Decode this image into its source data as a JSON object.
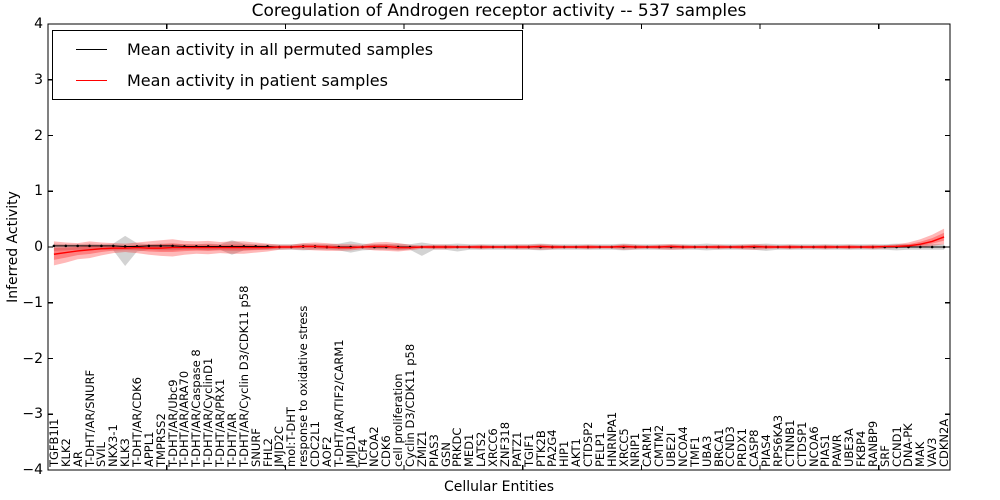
{
  "title": "Coregulation of Androgen receptor activity -- 537 samples",
  "legend": {
    "items": [
      {
        "label": "Mean activity in all permuted samples",
        "color": "#000000"
      },
      {
        "label": "Mean activity in patient samples",
        "color": "#ff0000"
      }
    ],
    "position": "upper left"
  },
  "axes": {
    "xlabel": "Cellular Entities",
    "ylabel": "Inferred Activity",
    "y_tick_values": [
      4,
      3,
      2,
      1,
      0,
      -1,
      -2,
      -3,
      -4
    ],
    "y_tick_labels": [
      "4",
      "3",
      "2",
      "1",
      "0",
      "−1",
      "−2",
      "−3",
      "−4"
    ],
    "x_tick_units": [
      10,
      20,
      30,
      40,
      50,
      60,
      70
    ],
    "ylim": [
      -4,
      4
    ],
    "grid": false
  },
  "colors": {
    "permuted_line": "#000000",
    "patient_line": "#ff0000",
    "permuted_band": "#808080",
    "patient_band": "#ff0000",
    "permuted_band_alpha": 0.35,
    "patient_band_alpha": 0.28,
    "spine": "#000000",
    "background": "#ffffff"
  },
  "chart_data": {
    "type": "line",
    "title": "Coregulation of Androgen receptor activity -- 537 samples",
    "xlabel": "Cellular Entities",
    "ylabel": "Inferred Activity",
    "ylim": [
      -4,
      4
    ],
    "n_points": 76,
    "legend_position": "upper left",
    "grid": false,
    "categories": [
      "TGFB1I1",
      "KLK2",
      "AR",
      "T-DHT/AR/SNURF",
      "SVIL",
      "NKX3-1",
      "KLK3",
      "T-DHT/AR/CDK6",
      "APPL1",
      "TMPRSS2",
      "T-DHT/AR/Ubc9",
      "T-DHT/AR/ARA70",
      "T-DHT/AR/Caspase 8",
      "T-DHT/AR/CyclinD1",
      "T-DHT/AR/PRX1",
      "T-DHT/AR",
      "T-DHT/AR/Cyclin D3/CDK11 p58",
      "SNURF",
      "FHL2",
      "JMJD2C",
      "mol:T-DHT",
      "response to oxidative stress",
      "CDC2L1",
      "AOF2",
      "T-DHT/AR/TIF2/CARM1",
      "JMJD1A",
      "TCF4",
      "NCOA2",
      "CDK6",
      "cell proliferation",
      "Cyclin D3/CDK11 p58",
      "ZMIZ1",
      "PIAS3",
      "GSN",
      "PRKDC",
      "MED1",
      "LATS2",
      "XRCC6",
      "ZNF318",
      "PATZ1",
      "TGIF1",
      "PTK2B",
      "PA2G4",
      "HIP1",
      "AKT1",
      "CTDSP2",
      "PELP1",
      "HNRNPA1",
      "XRCC5",
      "NRIP1",
      "CARM1",
      "CMTM2",
      "UBE2I",
      "NCOA4",
      "TMF1",
      "UBA3",
      "BRCA1",
      "CCND3",
      "PRDX1",
      "CASP8",
      "PIAS4",
      "RPS6KA3",
      "CTNNB1",
      "CTDSP1",
      "NCOA6",
      "PIAS1",
      "PAWR",
      "UBE3A",
      "FKBP4",
      "RANBP9",
      "SRF",
      "CCND1",
      "DNA-PK",
      "MAK",
      "VAV3",
      "CDKN2A"
    ],
    "series": [
      {
        "name": "Mean activity in all permuted samples",
        "color": "#000000",
        "band_color": "#808080",
        "markers": true,
        "values": [
          0.02,
          0.02,
          0.02,
          0.02,
          0.02,
          0.02,
          0.01,
          0.01,
          0.02,
          0.02,
          0.02,
          0.01,
          0.01,
          0.01,
          0.01,
          0.01,
          0.01,
          0.01,
          0.01,
          0.0,
          0.0,
          0.01,
          0.01,
          0.0,
          0.0,
          0.0,
          0.0,
          0.0,
          0.0,
          0.0,
          0.0,
          0.0,
          0.0,
          0.0,
          0.0,
          0.0,
          0.0,
          0.0,
          0.0,
          0.0,
          0.0,
          0.0,
          0.0,
          0.0,
          0.0,
          0.0,
          0.0,
          0.0,
          0.0,
          0.0,
          0.0,
          0.0,
          0.0,
          0.0,
          0.0,
          0.0,
          0.0,
          0.0,
          0.0,
          0.0,
          0.0,
          0.0,
          0.0,
          0.0,
          0.0,
          0.0,
          0.0,
          0.0,
          0.0,
          0.0,
          0.0,
          0.0,
          0.0,
          0.0,
          0.0,
          0.0
        ],
        "band_upper": [
          0.06,
          0.05,
          0.05,
          0.06,
          0.05,
          0.06,
          0.2,
          0.07,
          0.05,
          0.06,
          0.06,
          0.05,
          0.05,
          0.06,
          0.05,
          0.12,
          0.06,
          0.05,
          0.05,
          0.05,
          0.05,
          0.06,
          0.05,
          0.05,
          0.06,
          0.1,
          0.06,
          0.05,
          0.05,
          0.06,
          0.05,
          0.08,
          0.05,
          0.05,
          0.06,
          0.05,
          0.05,
          0.05,
          0.05,
          0.05,
          0.05,
          0.06,
          0.05,
          0.05,
          0.05,
          0.05,
          0.05,
          0.05,
          0.06,
          0.05,
          0.05,
          0.05,
          0.05,
          0.05,
          0.05,
          0.06,
          0.05,
          0.05,
          0.05,
          0.05,
          0.06,
          0.05,
          0.05,
          0.05,
          0.05,
          0.05,
          0.05,
          0.05,
          0.05,
          0.05,
          0.05,
          0.06,
          0.05,
          0.05,
          0.05,
          0.05
        ],
        "band_lower": [
          -0.07,
          -0.06,
          -0.05,
          -0.06,
          -0.05,
          -0.06,
          -0.34,
          -0.08,
          -0.05,
          -0.06,
          -0.06,
          -0.05,
          -0.05,
          -0.06,
          -0.05,
          -0.14,
          -0.06,
          -0.05,
          -0.05,
          -0.05,
          -0.05,
          -0.06,
          -0.05,
          -0.05,
          -0.06,
          -0.1,
          -0.06,
          -0.05,
          -0.05,
          -0.06,
          -0.05,
          -0.16,
          -0.05,
          -0.05,
          -0.08,
          -0.05,
          -0.05,
          -0.05,
          -0.05,
          -0.05,
          -0.05,
          -0.06,
          -0.05,
          -0.05,
          -0.05,
          -0.05,
          -0.05,
          -0.05,
          -0.06,
          -0.05,
          -0.05,
          -0.05,
          -0.05,
          -0.05,
          -0.05,
          -0.06,
          -0.05,
          -0.05,
          -0.05,
          -0.05,
          -0.07,
          -0.05,
          -0.05,
          -0.05,
          -0.05,
          -0.05,
          -0.05,
          -0.05,
          -0.05,
          -0.05,
          -0.05,
          -0.06,
          -0.05,
          -0.05,
          -0.05,
          -0.05
        ]
      },
      {
        "name": "Mean activity in patient samples",
        "color": "#ff0000",
        "band_color": "#ff0000",
        "markers": false,
        "values": [
          -0.13,
          -0.1,
          -0.07,
          -0.05,
          -0.03,
          -0.02,
          -0.02,
          -0.01,
          -0.02,
          -0.02,
          -0.01,
          -0.01,
          -0.01,
          -0.01,
          -0.01,
          -0.01,
          -0.01,
          -0.01,
          -0.01,
          0.0,
          0.0,
          0.01,
          0.01,
          0.0,
          -0.01,
          -0.01,
          0.0,
          0.01,
          0.01,
          -0.01,
          -0.01,
          0.0,
          0.0,
          0.0,
          0.0,
          0.0,
          0.0,
          0.0,
          0.0,
          0.0,
          0.0,
          0.01,
          0.0,
          0.0,
          0.0,
          0.0,
          0.0,
          0.0,
          0.01,
          0.0,
          0.0,
          0.0,
          0.01,
          0.0,
          0.0,
          0.0,
          0.0,
          0.0,
          0.0,
          0.01,
          0.0,
          0.0,
          0.0,
          0.0,
          0.0,
          0.0,
          0.0,
          0.0,
          0.0,
          0.0,
          0.01,
          0.01,
          0.02,
          0.05,
          0.1,
          0.18
        ],
        "band_upper": [
          0.1,
          0.08,
          0.07,
          0.1,
          0.08,
          0.07,
          0.06,
          0.08,
          0.1,
          0.12,
          0.14,
          0.11,
          0.1,
          0.11,
          0.09,
          0.1,
          0.1,
          0.08,
          0.06,
          0.04,
          0.04,
          0.07,
          0.08,
          0.07,
          0.05,
          0.05,
          0.04,
          0.08,
          0.09,
          0.07,
          0.04,
          0.03,
          0.04,
          0.04,
          0.03,
          0.03,
          0.04,
          0.03,
          0.03,
          0.04,
          0.04,
          0.05,
          0.04,
          0.03,
          0.03,
          0.04,
          0.03,
          0.03,
          0.05,
          0.04,
          0.03,
          0.04,
          0.05,
          0.04,
          0.03,
          0.03,
          0.04,
          0.03,
          0.04,
          0.05,
          0.04,
          0.03,
          0.04,
          0.03,
          0.03,
          0.04,
          0.03,
          0.04,
          0.03,
          0.04,
          0.03,
          0.05,
          0.08,
          0.14,
          0.22,
          0.33
        ],
        "band_lower": [
          -0.33,
          -0.28,
          -0.22,
          -0.2,
          -0.15,
          -0.11,
          -0.09,
          -0.11,
          -0.14,
          -0.16,
          -0.17,
          -0.14,
          -0.12,
          -0.13,
          -0.11,
          -0.12,
          -0.12,
          -0.1,
          -0.08,
          -0.05,
          -0.04,
          -0.05,
          -0.06,
          -0.07,
          -0.07,
          -0.06,
          -0.04,
          -0.06,
          -0.07,
          -0.08,
          -0.06,
          -0.03,
          -0.04,
          -0.04,
          -0.03,
          -0.03,
          -0.04,
          -0.03,
          -0.03,
          -0.04,
          -0.04,
          -0.05,
          -0.04,
          -0.03,
          -0.03,
          -0.04,
          -0.03,
          -0.03,
          -0.05,
          -0.04,
          -0.03,
          -0.04,
          -0.05,
          -0.04,
          -0.03,
          -0.03,
          -0.04,
          -0.03,
          -0.04,
          -0.05,
          -0.04,
          -0.03,
          -0.04,
          -0.03,
          -0.03,
          -0.04,
          -0.03,
          -0.04,
          -0.03,
          -0.04,
          -0.03,
          -0.02,
          -0.01,
          0.0,
          0.02,
          0.05
        ]
      }
    ]
  }
}
